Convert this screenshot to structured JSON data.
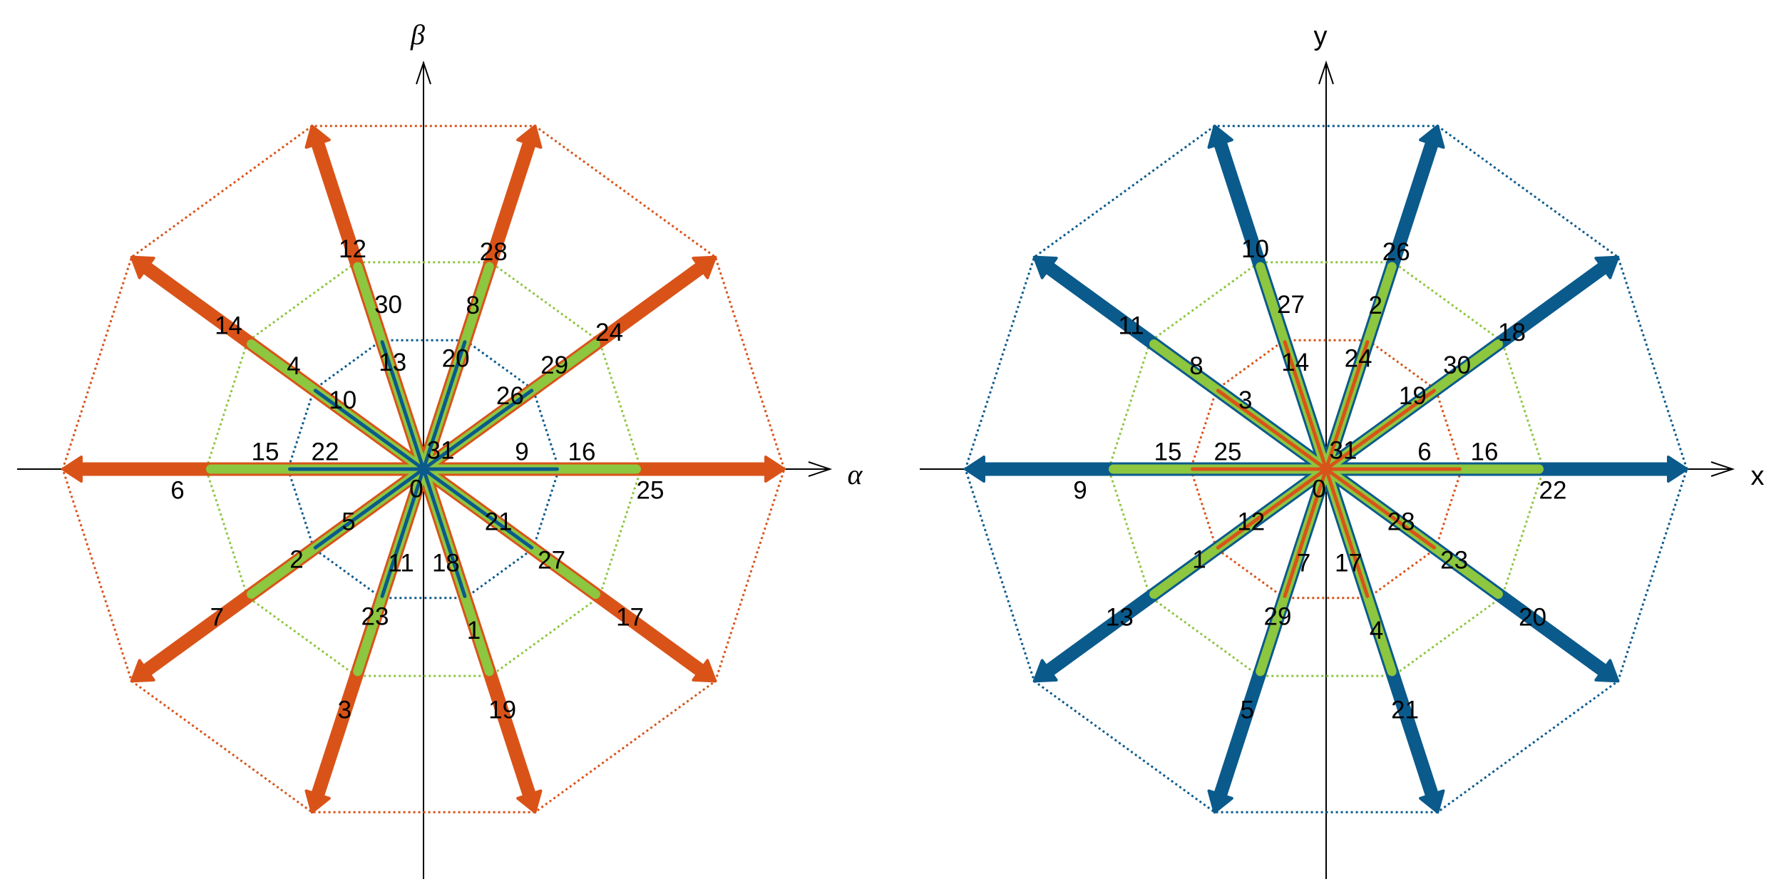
{
  "panels": [
    {
      "axes": {
        "x": "α",
        "y": "β"
      },
      "axis_style": "italic",
      "rings": [
        {
          "color": "#d95319",
          "labels": [
            "25",
            "24",
            "28",
            "12",
            "14",
            "6",
            "7",
            "3",
            "19",
            "17"
          ]
        },
        {
          "color": "#8dc63f",
          "labels": [
            "16",
            "29",
            "8",
            "30",
            "4",
            "15",
            "2",
            "23",
            "1",
            "27"
          ]
        },
        {
          "color": "#0a5a8c",
          "labels": [
            "9",
            "26",
            "20",
            "13",
            "10",
            "22",
            "5",
            "11",
            "18",
            "21"
          ]
        }
      ],
      "zero": [
        "31",
        "0"
      ]
    },
    {
      "axes": {
        "x": "x",
        "y": "y"
      },
      "axis_style": "plain",
      "rings": [
        {
          "color": "#0a5a8c",
          "labels": [
            "22",
            "18",
            "26",
            "10",
            "11",
            "9",
            "13",
            "5",
            "21",
            "20"
          ]
        },
        {
          "color": "#8dc63f",
          "labels": [
            "16",
            "30",
            "2",
            "27",
            "8",
            "15",
            "1",
            "29",
            "4",
            "23"
          ]
        },
        {
          "color": "#d95319",
          "labels": [
            "6",
            "19",
            "24",
            "14",
            "3",
            "25",
            "12",
            "7",
            "17",
            "28"
          ]
        }
      ],
      "zero": [
        "31",
        "0"
      ]
    }
  ]
}
